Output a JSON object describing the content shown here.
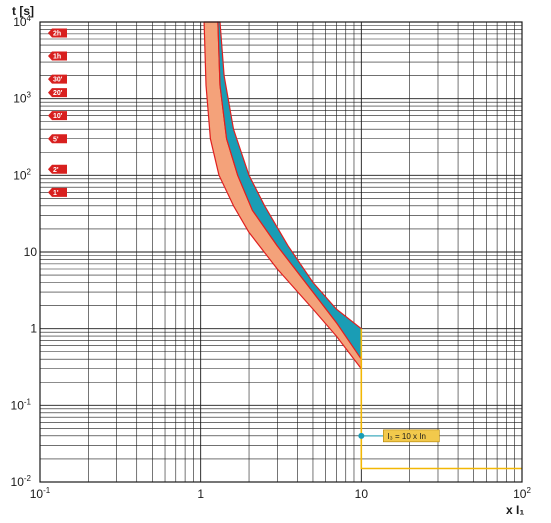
{
  "chart_data": {
    "type": "area",
    "y_axis_title": "t [s]",
    "x_axis_title": "x I₁",
    "x_scale": "log",
    "y_scale": "log",
    "xlim": [
      0.1,
      100
    ],
    "ylim": [
      0.01,
      10000
    ],
    "grid": true,
    "x_ticks": [
      {
        "value": 0.1,
        "base": "10",
        "exp": "-1"
      },
      {
        "value": 1,
        "base": "1",
        "exp": ""
      },
      {
        "value": 10,
        "base": "10",
        "exp": ""
      },
      {
        "value": 100,
        "base": "10",
        "exp": "2"
      }
    ],
    "y_ticks": [
      {
        "value": 10000,
        "base": "10",
        "exp": "4"
      },
      {
        "value": 1000,
        "base": "10",
        "exp": "3"
      },
      {
        "value": 100,
        "base": "10",
        "exp": "2"
      },
      {
        "value": 10,
        "base": "10",
        "exp": ""
      },
      {
        "value": 1,
        "base": "1",
        "exp": ""
      },
      {
        "value": 0.1,
        "base": "10",
        "exp": "-1"
      },
      {
        "value": 0.01,
        "base": "10",
        "exp": "-2"
      }
    ],
    "time_markers": [
      {
        "label": "2h",
        "seconds": 7200
      },
      {
        "label": "1h",
        "seconds": 3600
      },
      {
        "label": "30'",
        "seconds": 1800
      },
      {
        "label": "20'",
        "seconds": 1200
      },
      {
        "label": "10'",
        "seconds": 600
      },
      {
        "label": "5'",
        "seconds": 300
      },
      {
        "label": "2'",
        "seconds": 120
      },
      {
        "label": "1'",
        "seconds": 60
      }
    ],
    "bands": [
      {
        "color": "#f4a27a",
        "edge_color": "#e02020",
        "upper": [
          [
            1.05,
            10000
          ],
          [
            1.08,
            1500
          ],
          [
            1.15,
            300
          ],
          [
            1.3,
            100
          ],
          [
            1.6,
            40
          ],
          [
            2,
            18
          ],
          [
            3,
            6
          ],
          [
            5,
            1.8
          ],
          [
            7,
            0.8
          ],
          [
            10,
            0.3
          ]
        ],
        "lower": [
          [
            1.28,
            10000
          ],
          [
            1.32,
            1500
          ],
          [
            1.45,
            300
          ],
          [
            1.7,
            100
          ],
          [
            2.1,
            35
          ],
          [
            3,
            12
          ],
          [
            5,
            3
          ],
          [
            7,
            1.2
          ],
          [
            10,
            0.5
          ]
        ],
        "upper_tail": [
          [
            10,
            0.3
          ],
          [
            10,
            0.12
          ]
        ],
        "lower_tail": [
          [
            10,
            0.5
          ],
          [
            10,
            1.0
          ]
        ]
      },
      {
        "color": "#1a9db5",
        "edge_color": "#e02020",
        "upper": [
          [
            1.28,
            10000
          ],
          [
            1.32,
            1500
          ],
          [
            1.45,
            300
          ],
          [
            1.7,
            100
          ],
          [
            2.1,
            35
          ],
          [
            3,
            12
          ],
          [
            5,
            3
          ],
          [
            7,
            1.2
          ],
          [
            10,
            0.4
          ]
        ],
        "lower": [
          [
            1.32,
            10000
          ],
          [
            1.4,
            2000
          ],
          [
            1.6,
            400
          ],
          [
            2,
            100
          ],
          [
            2.5,
            40
          ],
          [
            3.5,
            12
          ],
          [
            5,
            4
          ],
          [
            7,
            1.8
          ],
          [
            10,
            1.0
          ]
        ]
      }
    ],
    "limit_line": {
      "color": "#f2b705",
      "points": [
        [
          10,
          1.0
        ],
        [
          10,
          0.015
        ],
        [
          100,
          0.015
        ]
      ]
    },
    "callout": {
      "text": "I₃ = 10 x In",
      "x": 10,
      "y": 0.04,
      "dot_color": "#1a9db5",
      "box_color": "#f2c94c"
    }
  }
}
